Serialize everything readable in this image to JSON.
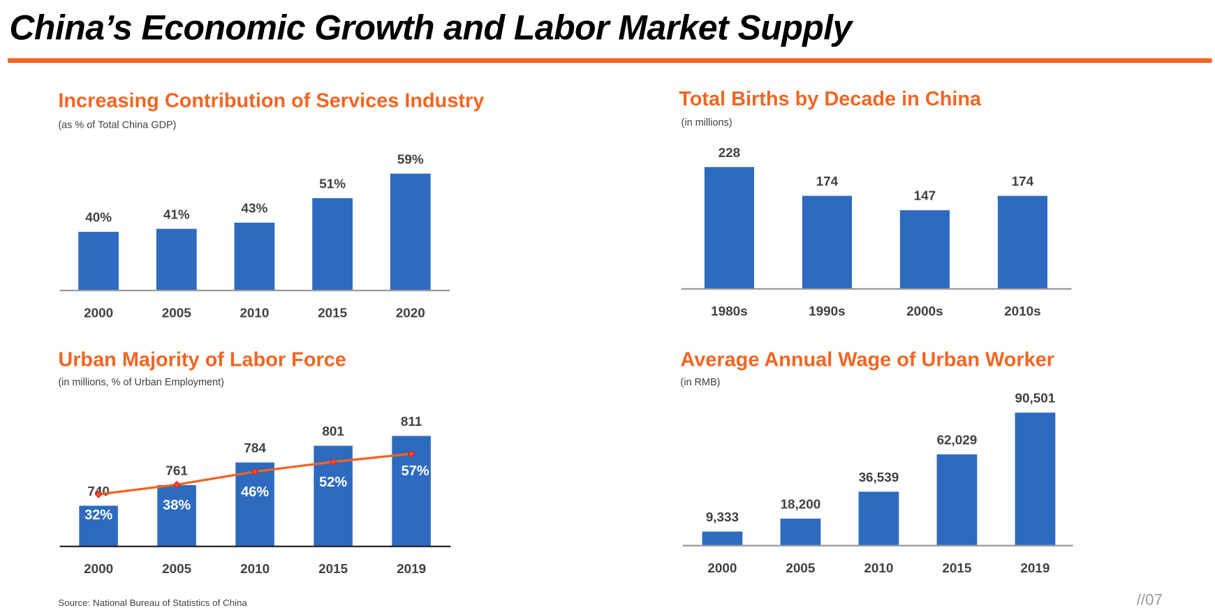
{
  "title": "China’s Economic Growth and Labor Market Supply",
  "colors": {
    "accent": "#F26522",
    "bar": "#2E6BC0",
    "text": "#404040"
  },
  "source": "Source: National Bureau of Statistics of China",
  "page_number": "//07",
  "chart_data": [
    {
      "type": "bar",
      "title": "Increasing Contribution of Services Industry",
      "subtitle": "(as % of Total China GDP)",
      "categories": [
        "2000",
        "2005",
        "2010",
        "2015",
        "2020"
      ],
      "values": [
        40,
        41,
        43,
        51,
        59
      ],
      "labels": [
        "40%",
        "41%",
        "43%",
        "51%",
        "59%"
      ],
      "unit": "%",
      "ylim": [
        21,
        62
      ]
    },
    {
      "type": "bar",
      "title": "Total Births by Decade in China",
      "subtitle": "(in millions)",
      "categories": [
        "1980s",
        "1990s",
        "2000s",
        "2010s"
      ],
      "values": [
        228,
        174,
        147,
        174
      ],
      "labels": [
        "228",
        "174",
        "147",
        "174"
      ],
      "ylim": [
        0,
        230
      ]
    },
    {
      "type": "bar+line",
      "title": "Urban Majority of Labor Force",
      "subtitle": "(in millions, % of Urban Employment)",
      "categories": [
        "2000",
        "2005",
        "2010",
        "2015",
        "2019"
      ],
      "series": [
        {
          "name": "Labor force (millions)",
          "type": "bar",
          "values": [
            740,
            761,
            784,
            801,
            811
          ],
          "labels": [
            "740",
            "761",
            "784",
            "801",
            "811"
          ],
          "ylim": [
            699,
            811
          ]
        },
        {
          "name": "% Urban Employment",
          "type": "line",
          "values": [
            32,
            38,
            46,
            52,
            57
          ],
          "labels": [
            "32%",
            "38%",
            "46%",
            "52%",
            "57%"
          ],
          "ylim": [
            19.3,
            57
          ]
        }
      ]
    },
    {
      "type": "bar",
      "title": "Average Annual Wage of Urban Worker",
      "subtitle": "(in RMB)",
      "categories": [
        "2000",
        "2005",
        "2010",
        "2015",
        "2019"
      ],
      "values": [
        9333,
        18200,
        36539,
        62029,
        90501
      ],
      "labels": [
        "9,333",
        "18,200",
        "36,539",
        "62,029",
        "90,501"
      ],
      "ylim": [
        0,
        90501
      ]
    }
  ]
}
